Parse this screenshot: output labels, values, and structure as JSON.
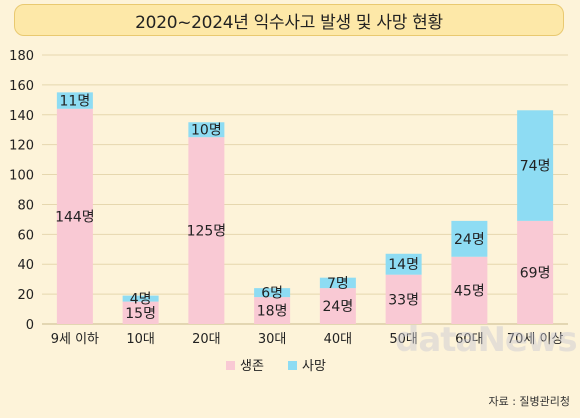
{
  "title": "2020~2024년 익수사고 발생 및 사망 현황",
  "source": "자료 : 질병관리청",
  "watermark": "dataNews",
  "chart_data": {
    "type": "bar",
    "stacked": true,
    "categories": [
      "9세 이하",
      "10대",
      "20대",
      "30대",
      "40대",
      "50대",
      "60대",
      "70세 이상"
    ],
    "series": [
      {
        "name": "생존",
        "color": "#f9c9d4",
        "values": [
          144,
          15,
          125,
          18,
          24,
          33,
          45,
          69
        ],
        "labels": [
          "144명",
          "15명",
          "125명",
          "18명",
          "24명",
          "33명",
          "45명",
          "69명"
        ]
      },
      {
        "name": "사망",
        "color": "#8edcf3",
        "values": [
          11,
          4,
          10,
          6,
          7,
          14,
          24,
          74
        ],
        "labels": [
          "11명",
          "4명",
          "10명",
          "6명",
          "7명",
          "14명",
          "24명",
          "74명"
        ]
      }
    ],
    "y_ticks": [
      "0",
      "20",
      "40",
      "60",
      "80",
      "100",
      "120",
      "140",
      "160",
      "180"
    ],
    "ylim": [
      0,
      180
    ],
    "grid": true,
    "legend_position": "bottom-center"
  }
}
